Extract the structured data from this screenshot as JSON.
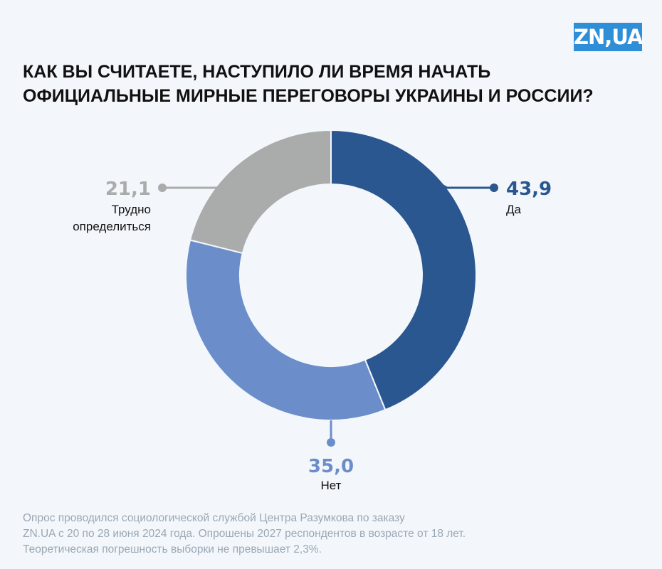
{
  "logo": "ZN,UA",
  "title_lines": [
    "КАК ВЫ СЧИТАЕТЕ, НАСТУПИЛО ЛИ ВРЕМЯ НАЧАТЬ",
    "ОФИЦИАЛЬНЫЕ МИРНЫЕ ПЕРЕГОВОРЫ УКРАИНЫ И РОССИИ?"
  ],
  "chart_data": {
    "type": "pie",
    "variant": "donut",
    "title": "Как вы считаете, наступило ли время начать официальные мирные переговоры Украины и России?",
    "slices": [
      {
        "value": 43.9,
        "value_label": "43,9",
        "label_lines": [
          "Да"
        ],
        "color": "#2a578f"
      },
      {
        "value": 35.0,
        "value_label": "35,0",
        "label_lines": [
          "Нет"
        ],
        "color": "#6b8ecb"
      },
      {
        "value": 21.1,
        "value_label": "21,1",
        "label_lines": [
          "Трудно",
          "определиться"
        ],
        "color": "#a9acab"
      }
    ],
    "start_angle": "top",
    "direction": "clockwise"
  },
  "footnote_lines": [
    "Опрос проводился социологической службой Центра Разумкова по заказу",
    "ZN.UA с 20 по 28 июня 2024 года. Опрошены 2027 респондентов в возрасте от 18 лет.",
    "Теоретическая погрешность выборки не превышает 2,3%."
  ]
}
